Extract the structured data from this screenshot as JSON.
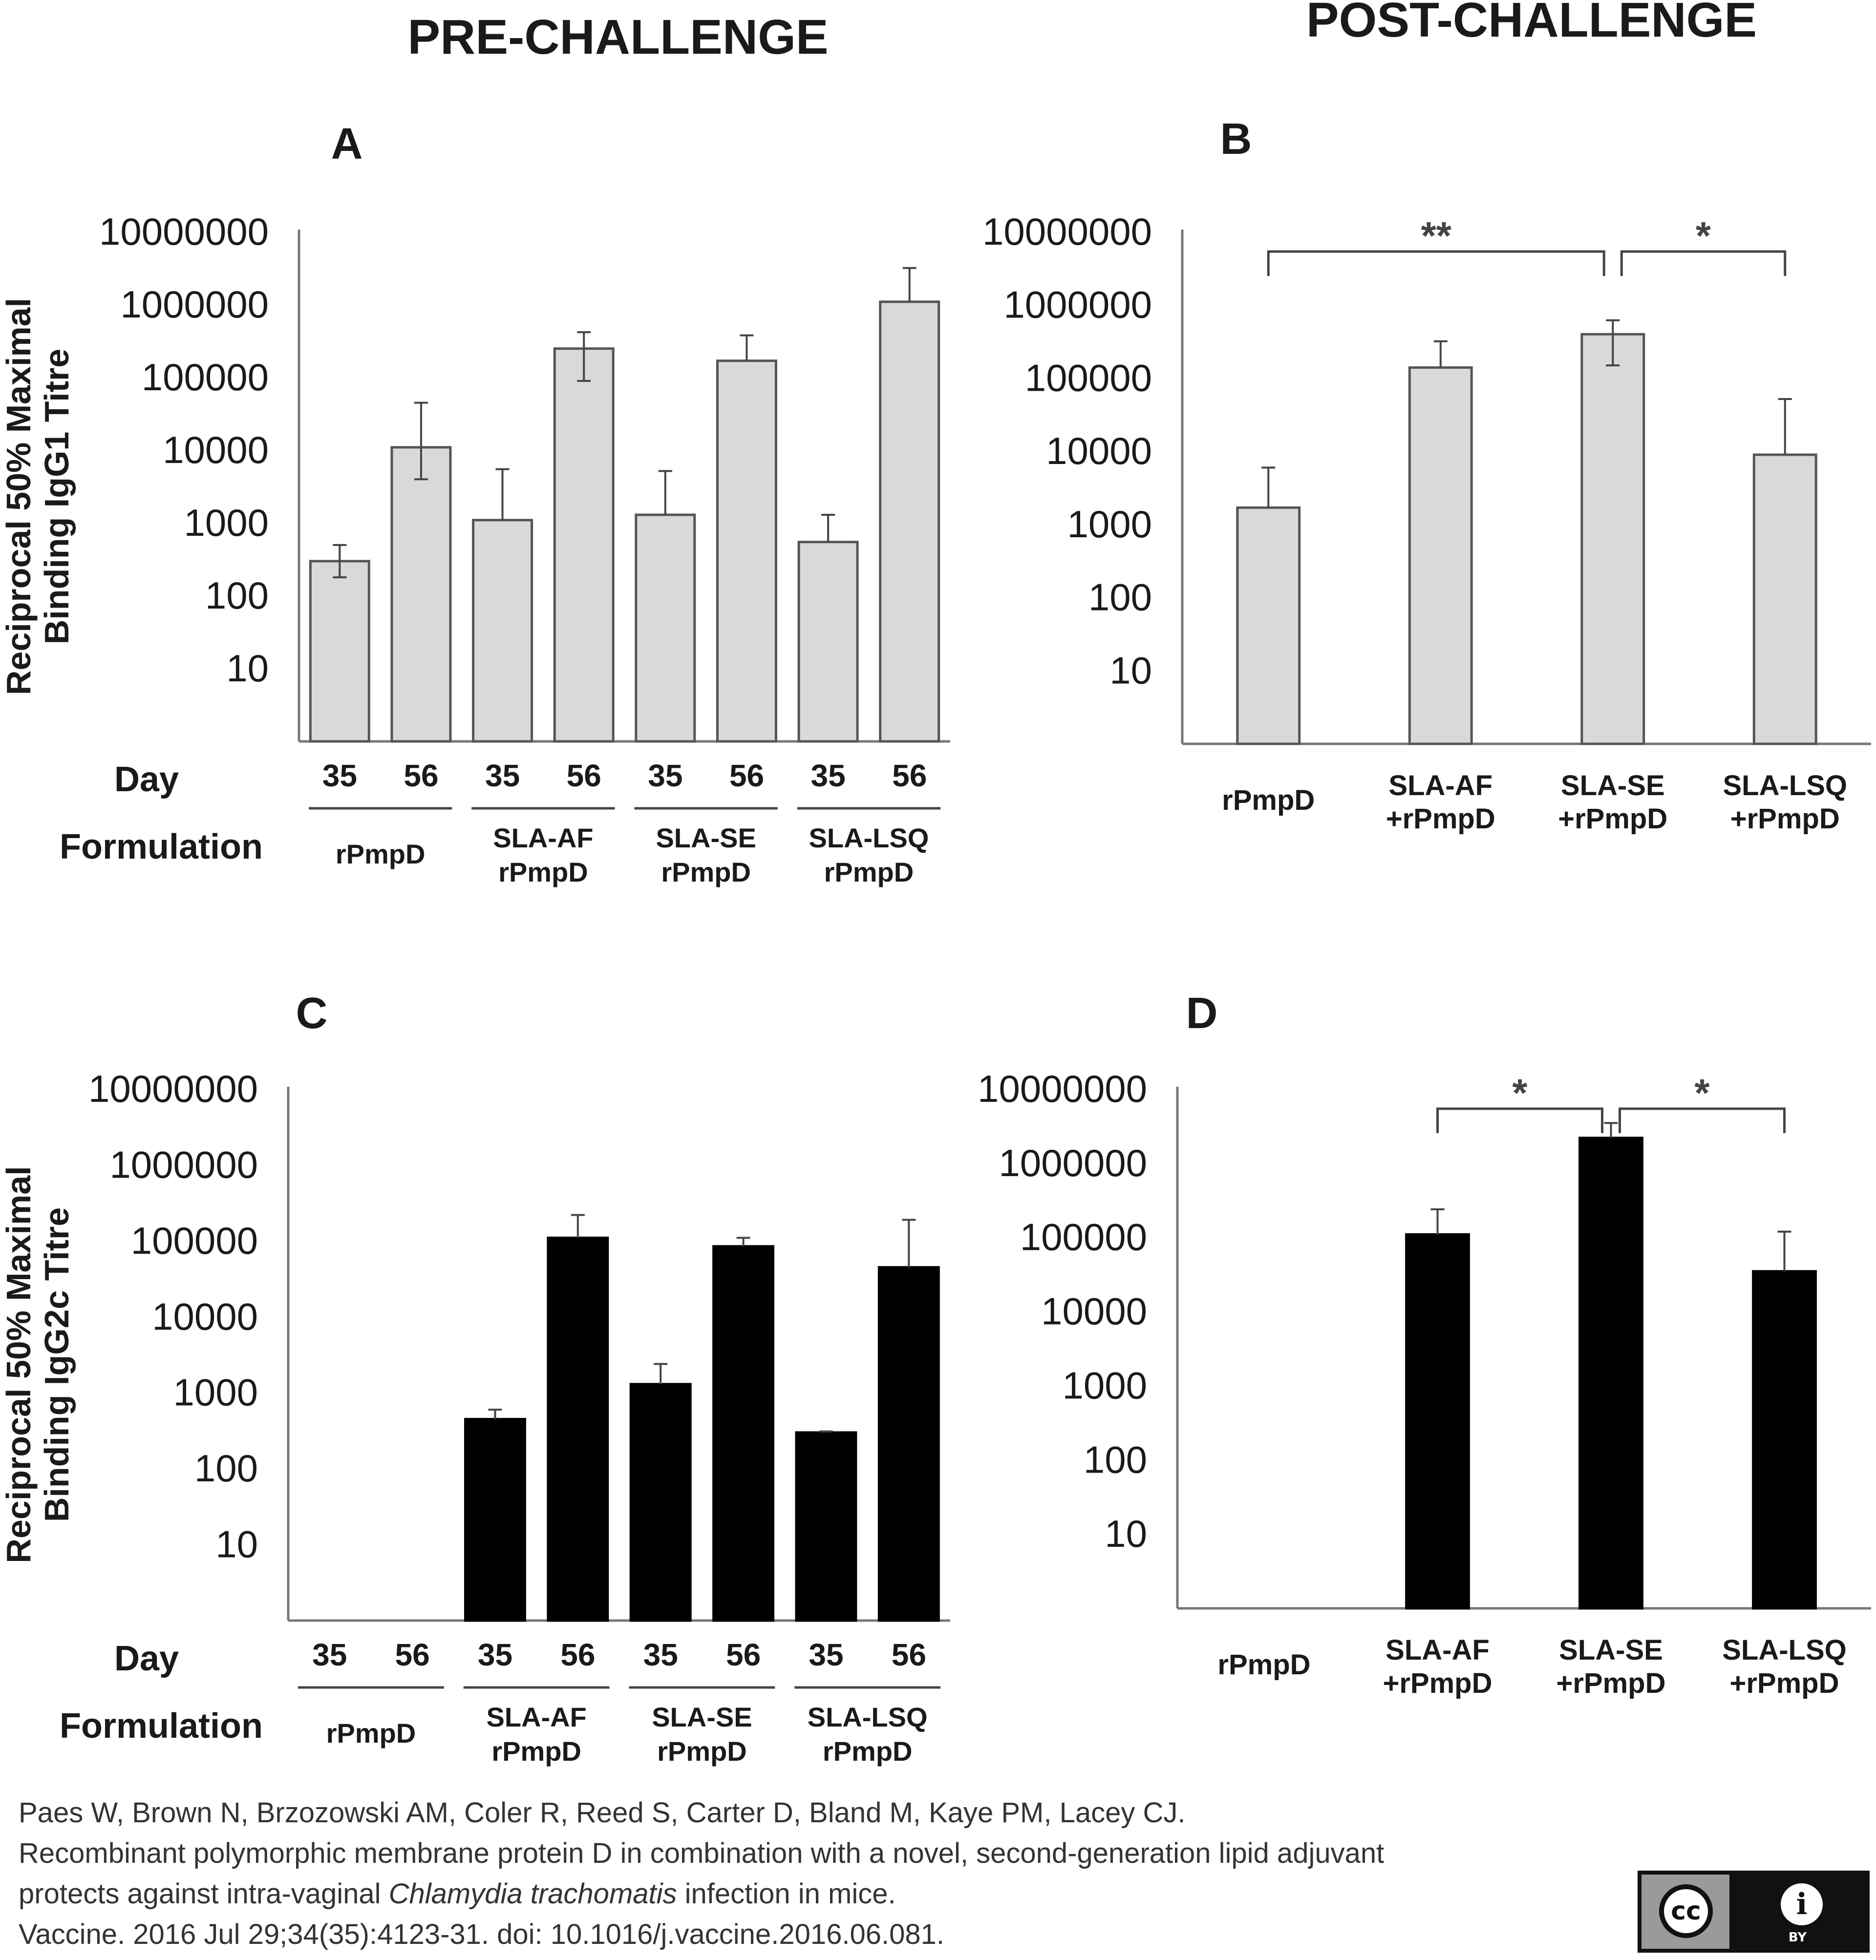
{
  "headers": {
    "pre": "PRE-CHALLENGE",
    "post": "POST-CHALLENGE"
  },
  "chart_data": [
    {
      "id": "A",
      "type": "bar",
      "panel_label": "A",
      "title": "",
      "ylabel_lines": [
        "Reciprocal 50% Maximal",
        "Binding IgG1 Titre"
      ],
      "yscale": "log",
      "ylim": [
        1,
        10000000
      ],
      "yticks": [
        "10000000",
        "1000000",
        "100000",
        "10000",
        "1000",
        "100",
        "10"
      ],
      "categories": [
        "rPmpD d35",
        "rPmpD d56",
        "SLA-AF rPmpD d35",
        "SLA-AF rPmpD d56",
        "SLA-SE rPmpD d35",
        "SLA-SE rPmpD d56",
        "SLA-LSQ rPmpD d35",
        "SLA-LSQ rPmpD d56"
      ],
      "values": [
        300,
        11000,
        1100,
        250000,
        1300,
        170000,
        550,
        1100000
      ],
      "error_upper": [
        500,
        45000,
        5500,
        420000,
        5200,
        380000,
        1300,
        3200000
      ],
      "error_lower": [
        180,
        4000,
        null,
        90000,
        null,
        null,
        null,
        null
      ],
      "bar_color": "#d9d9d9",
      "row_labels": {
        "day": "Day",
        "formulation": "Formulation"
      },
      "days": [
        "35",
        "56",
        "35",
        "56",
        "35",
        "56",
        "35",
        "56"
      ],
      "groups": [
        [
          "rPmpD"
        ],
        [
          "SLA-AF",
          "rPmpD"
        ],
        [
          "SLA-SE",
          "rPmpD"
        ],
        [
          "SLA-LSQ",
          "rPmpD"
        ]
      ],
      "brackets": []
    },
    {
      "id": "B",
      "type": "bar",
      "panel_label": "B",
      "title": "",
      "ylabel_lines": [],
      "yscale": "log",
      "ylim": [
        1,
        10000000
      ],
      "yticks": [
        "10000000",
        "1000000",
        "100000",
        "10000",
        "1000",
        "100",
        "10"
      ],
      "categories": [
        "rPmpD",
        "SLA-AF +rPmpD",
        "SLA-SE +rPmpD",
        "SLA-LSQ +rPmpD"
      ],
      "category_lines": [
        [
          "rPmpD"
        ],
        [
          "SLA-AF",
          "+rPmpD"
        ],
        [
          "SLA-SE",
          "+rPmpD"
        ],
        [
          "SLA-LSQ",
          "+rPmpD"
        ]
      ],
      "values": [
        1700,
        140000,
        400000,
        9000
      ],
      "error_upper": [
        6000,
        320000,
        620000,
        52000
      ],
      "error_lower": [
        null,
        null,
        150000,
        null
      ],
      "bar_color": "#d9d9d9",
      "brackets": [
        {
          "from": 0,
          "to": 2,
          "label": "**"
        },
        {
          "from": 2,
          "to": 3,
          "label": "*"
        }
      ]
    },
    {
      "id": "C",
      "type": "bar",
      "panel_label": "C",
      "title": "",
      "ylabel_lines": [
        "Reciprocal 50% Maximal",
        "Binding IgG2c Titre"
      ],
      "yscale": "log",
      "ylim": [
        1,
        10000000
      ],
      "yticks": [
        "10000000",
        "1000000",
        "100000",
        "10000",
        "1000",
        "100",
        "10"
      ],
      "categories": [
        "rPmpD d35",
        "rPmpD d56",
        "SLA-AF rPmpD d35",
        "SLA-AF rPmpD d56",
        "SLA-SE rPmpD d35",
        "SLA-SE rPmpD d56",
        "SLA-LSQ rPmpD d35",
        "SLA-LSQ rPmpD d56"
      ],
      "values": [
        0,
        0,
        450,
        110000,
        1300,
        85000,
        300,
        45000
      ],
      "error_upper": [
        null,
        null,
        600,
        220000,
        2400,
        110000,
        310,
        190000
      ],
      "error_lower": [
        null,
        null,
        null,
        null,
        null,
        null,
        null,
        null
      ],
      "bar_color": "#000000",
      "row_labels": {
        "day": "Day",
        "formulation": "Formulation"
      },
      "days": [
        "35",
        "56",
        "35",
        "56",
        "35",
        "56",
        "35",
        "56"
      ],
      "groups": [
        [
          "rPmpD"
        ],
        [
          "SLA-AF",
          "rPmpD"
        ],
        [
          "SLA-SE",
          "rPmpD"
        ],
        [
          "SLA-LSQ",
          "rPmpD"
        ]
      ],
      "brackets": []
    },
    {
      "id": "D",
      "type": "bar",
      "panel_label": "D",
      "title": "",
      "ylabel_lines": [],
      "yscale": "log",
      "ylim": [
        1,
        10000000
      ],
      "yticks": [
        "10000000",
        "1000000",
        "100000",
        "10000",
        "1000",
        "100",
        "10"
      ],
      "categories": [
        "rPmpD",
        "SLA-AF +rPmpD",
        "SLA-SE +rPmpD",
        "SLA-LSQ +rPmpD"
      ],
      "category_lines": [
        [
          "rPmpD"
        ],
        [
          "SLA-AF",
          "+rPmpD"
        ],
        [
          "SLA-SE",
          "+rPmpD"
        ],
        [
          "SLA-LSQ",
          "+rPmpD"
        ]
      ],
      "values": [
        0,
        110000,
        2200000,
        35000
      ],
      "error_upper": [
        null,
        240000,
        3500000,
        120000
      ],
      "error_lower": [
        null,
        null,
        null,
        null
      ],
      "bar_color": "#000000",
      "brackets": [
        {
          "from": 1,
          "to": 2,
          "label": "*"
        },
        {
          "from": 2,
          "to": 3,
          "label": "*"
        }
      ]
    }
  ],
  "citation": {
    "line1": "Paes W, Brown N, Brzozowski AM, Coler R, Reed S, Carter D, Bland M, Kaye PM, Lacey CJ.",
    "line2": "Recombinant polymorphic membrane protein D in combination with a novel, second-generation lipid adjuvant",
    "line3_pre": "protects against intra-vaginal ",
    "line3_italic": "Chlamydia trachomatis",
    "line3_post": " infection in mice.",
    "line4": "Vaccine. 2016 Jul 29;34(35):4123-31. doi: 10.1016/j.vaccine.2016.06.081."
  },
  "license": {
    "cc": "cc",
    "by": "i",
    "by_label": "BY"
  }
}
